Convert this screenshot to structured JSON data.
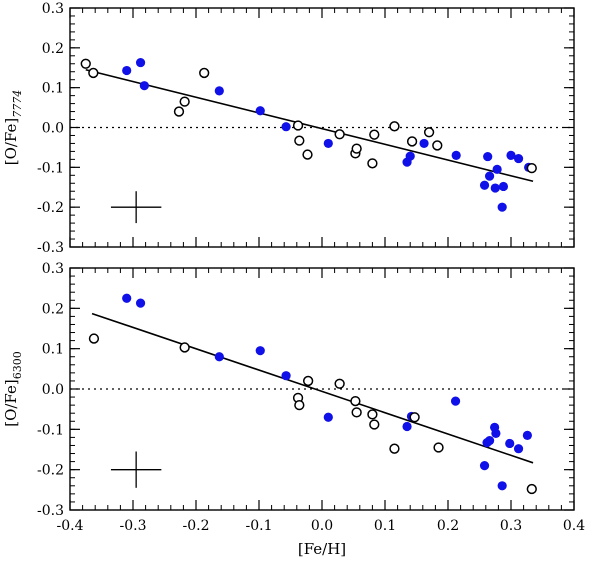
{
  "colors": {
    "filled": "#1010e8",
    "open": "#000000",
    "axis": "#000000"
  },
  "chart_data": [
    {
      "type": "scatter",
      "panel": "top",
      "ylabel_main": "[O/Fe]",
      "ylabel_sub": "7774",
      "xlabel": "",
      "xlim": [
        -0.4,
        0.4
      ],
      "ylim": [
        -0.3,
        0.3
      ],
      "xticks": [
        "-0.4",
        "-0.3",
        "-0.2",
        "-0.1",
        "0.0",
        "0.1",
        "0.2",
        "0.3",
        "0.4"
      ],
      "yticks": [
        "-0.3",
        "-0.2",
        "-0.1",
        "0.0",
        "0.1",
        "0.2",
        "0.3"
      ],
      "reference_line_y": 0.0,
      "fit_line": {
        "x": [
          -0.375,
          0.335
        ],
        "y": [
          0.145,
          -0.135
        ]
      },
      "error_bar": {
        "x": -0.295,
        "y": -0.2,
        "xerr": 0.04,
        "yerr": 0.04
      },
      "series": [
        {
          "name": "filled",
          "marker": "filled-circle",
          "points": [
            [
              -0.31,
              0.143
            ],
            [
              -0.288,
              0.163
            ],
            [
              -0.282,
              0.105
            ],
            [
              -0.163,
              0.092
            ],
            [
              -0.098,
              0.042
            ],
            [
              -0.057,
              0.002
            ],
            [
              0.01,
              -0.04
            ],
            [
              0.135,
              -0.087
            ],
            [
              0.14,
              -0.072
            ],
            [
              0.162,
              -0.04
            ],
            [
              0.213,
              -0.07
            ],
            [
              0.258,
              -0.145
            ],
            [
              0.263,
              -0.073
            ],
            [
              0.266,
              -0.122
            ],
            [
              0.275,
              -0.152
            ],
            [
              0.278,
              -0.105
            ],
            [
              0.286,
              -0.2
            ],
            [
              0.288,
              -0.148
            ],
            [
              0.3,
              -0.07
            ],
            [
              0.312,
              -0.078
            ],
            [
              0.328,
              -0.1
            ]
          ]
        },
        {
          "name": "open",
          "marker": "open-circle",
          "points": [
            [
              -0.375,
              0.16
            ],
            [
              -0.363,
              0.137
            ],
            [
              -0.227,
              0.04
            ],
            [
              -0.218,
              0.065
            ],
            [
              -0.187,
              0.137
            ],
            [
              -0.038,
              0.005
            ],
            [
              -0.036,
              -0.033
            ],
            [
              -0.023,
              -0.068
            ],
            [
              0.028,
              -0.017
            ],
            [
              0.053,
              -0.065
            ],
            [
              0.055,
              -0.053
            ],
            [
              0.08,
              -0.09
            ],
            [
              0.083,
              -0.018
            ],
            [
              0.115,
              0.003
            ],
            [
              0.143,
              -0.035
            ],
            [
              0.17,
              -0.012
            ],
            [
              0.183,
              -0.045
            ],
            [
              0.333,
              -0.102
            ]
          ]
        }
      ]
    },
    {
      "type": "scatter",
      "panel": "bottom",
      "ylabel_main": "[O/Fe]",
      "ylabel_sub": "6300",
      "xlabel": "[Fe/H]",
      "xlim": [
        -0.4,
        0.4
      ],
      "ylim": [
        -0.3,
        0.3
      ],
      "xticks": [
        "-0.4",
        "-0.3",
        "-0.2",
        "-0.1",
        "0.0",
        "0.1",
        "0.2",
        "0.3",
        "0.4"
      ],
      "yticks": [
        "-0.3",
        "-0.2",
        "-0.1",
        "0.0",
        "0.1",
        "0.2",
        "0.3"
      ],
      "reference_line_y": 0.0,
      "fit_line": {
        "x": [
          -0.365,
          0.335
        ],
        "y": [
          0.187,
          -0.183
        ]
      },
      "error_bar": {
        "x": -0.295,
        "y": -0.2,
        "xerr": 0.04,
        "yerr": 0.045
      },
      "series": [
        {
          "name": "filled",
          "marker": "filled-circle",
          "points": [
            [
              -0.31,
              0.225
            ],
            [
              -0.288,
              0.213
            ],
            [
              -0.163,
              0.08
            ],
            [
              -0.098,
              0.095
            ],
            [
              -0.057,
              0.033
            ],
            [
              0.01,
              -0.07
            ],
            [
              0.135,
              -0.093
            ],
            [
              0.142,
              -0.068
            ],
            [
              0.212,
              -0.03
            ],
            [
              0.258,
              -0.19
            ],
            [
              0.262,
              -0.133
            ],
            [
              0.266,
              -0.128
            ],
            [
              0.274,
              -0.095
            ],
            [
              0.276,
              -0.11
            ],
            [
              0.286,
              -0.24
            ],
            [
              0.298,
              -0.135
            ],
            [
              0.312,
              -0.148
            ],
            [
              0.326,
              -0.115
            ]
          ]
        },
        {
          "name": "open",
          "marker": "open-circle",
          "points": [
            [
              -0.362,
              0.125
            ],
            [
              -0.218,
              0.103
            ],
            [
              -0.038,
              -0.022
            ],
            [
              -0.036,
              -0.04
            ],
            [
              -0.022,
              0.02
            ],
            [
              0.028,
              0.013
            ],
            [
              0.053,
              -0.03
            ],
            [
              0.055,
              -0.058
            ],
            [
              0.08,
              -0.063
            ],
            [
              0.083,
              -0.088
            ],
            [
              0.115,
              -0.148
            ],
            [
              0.147,
              -0.07
            ],
            [
              0.185,
              -0.145
            ],
            [
              0.333,
              -0.248
            ]
          ]
        }
      ]
    }
  ]
}
